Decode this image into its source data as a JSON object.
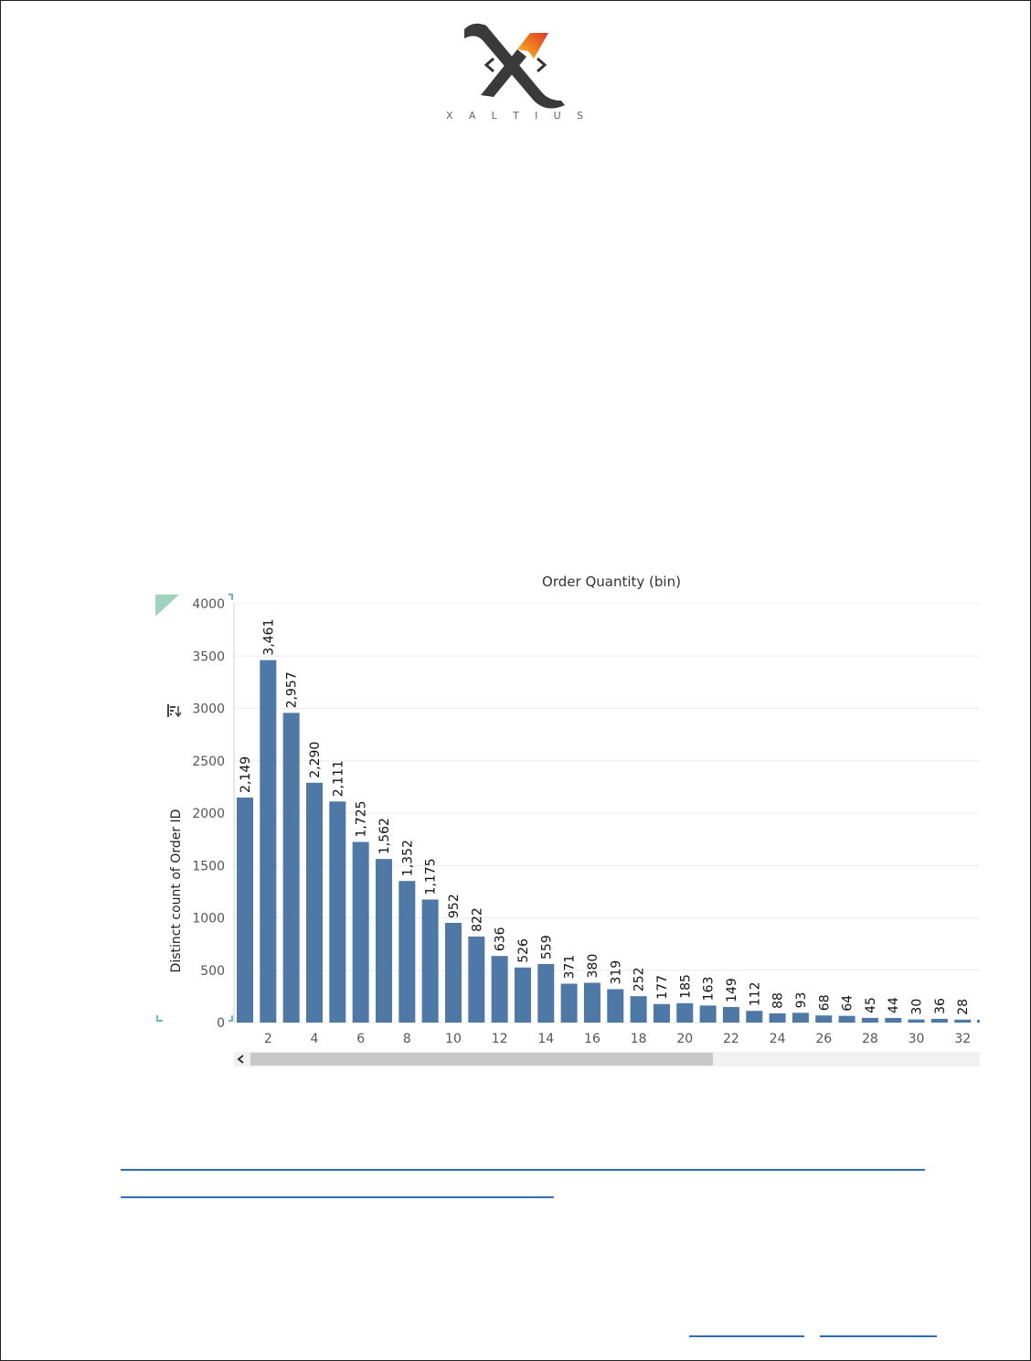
{
  "logo": {
    "letters": [
      "X",
      "A",
      "L",
      "T",
      "I",
      "U",
      "S"
    ]
  },
  "colors": {
    "bar": "#4e79a7",
    "grid": "#ececec",
    "axis_text": "#555555",
    "label_text": "#111111",
    "link": "#2f6db5"
  },
  "chart_data": {
    "type": "bar",
    "title": "Order Quantity (bin)",
    "xlabel": "",
    "ylabel": "Distinct count of Order ID",
    "ylim": [
      0,
      4000
    ],
    "yticks": [
      0,
      500,
      1000,
      1500,
      2000,
      2500,
      3000,
      3500,
      4000
    ],
    "xtick_labels": [
      "2",
      "4",
      "6",
      "8",
      "10",
      "12",
      "14",
      "16",
      "18",
      "20",
      "22",
      "24",
      "26",
      "28",
      "30",
      "32"
    ],
    "categories": [
      1,
      2,
      3,
      4,
      5,
      6,
      7,
      8,
      9,
      10,
      11,
      12,
      13,
      14,
      15,
      16,
      17,
      18,
      19,
      20,
      21,
      22,
      23,
      24,
      25,
      26,
      27,
      28,
      29,
      30,
      31,
      32
    ],
    "values": [
      2149,
      3461,
      2957,
      2290,
      2111,
      1725,
      1562,
      1352,
      1175,
      952,
      822,
      636,
      526,
      559,
      371,
      380,
      319,
      252,
      177,
      185,
      163,
      149,
      112,
      88,
      93,
      68,
      64,
      45,
      44,
      30,
      36,
      28
    ],
    "data_labels": [
      "2,149",
      "3,461",
      "2,957",
      "2,290",
      "2,111",
      "1,725",
      "1,562",
      "1,352",
      "1,175",
      "952",
      "822",
      "636",
      "526",
      "559",
      "371",
      "380",
      "319",
      "252",
      "177",
      "185",
      "163",
      "149",
      "112",
      "88",
      "93",
      "68",
      "64",
      "45",
      "44",
      "30",
      "36",
      "28"
    ],
    "grid": true
  }
}
